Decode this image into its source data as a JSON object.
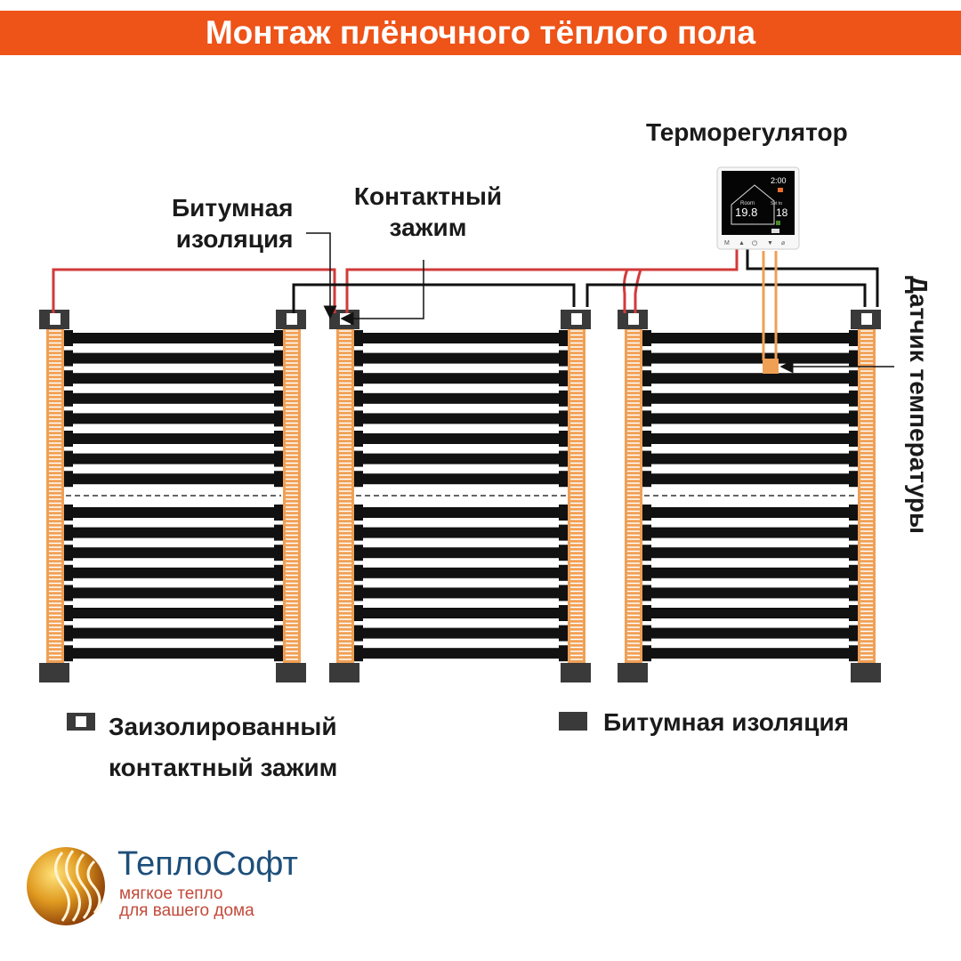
{
  "title": "Монтаж плёночного тёплого пола",
  "labels": {
    "thermostat": "Терморегулятор",
    "bitumen_line1": "Битумная",
    "bitumen_line2": "изоляция",
    "clamp_line1": "Контактный",
    "clamp_line2": "зажим",
    "sensor": "Датчик температуры"
  },
  "legend": {
    "clamp_line1": "Заизолированный",
    "clamp_line2": "контактный зажим",
    "bitumen": "Битумная изоляция"
  },
  "thermostat_display": {
    "time": "2:00",
    "room_label": "Room",
    "room_temp": "19.8",
    "set_label": "Set to",
    "set_temp": "18",
    "buttons": [
      "M",
      "▲",
      "⏻",
      "▼",
      "⌀"
    ]
  },
  "logo": {
    "name": "ТеплоСофт",
    "tagline1": "мягкое тепло",
    "tagline2": "для вашего дома"
  },
  "colors": {
    "header": "#ee5318",
    "phase_wire": "#d23a3a",
    "neutral_wire": "#111111",
    "bus": "#f0a055",
    "film_strip": "#111111",
    "clamp": "#3a3a3a"
  }
}
